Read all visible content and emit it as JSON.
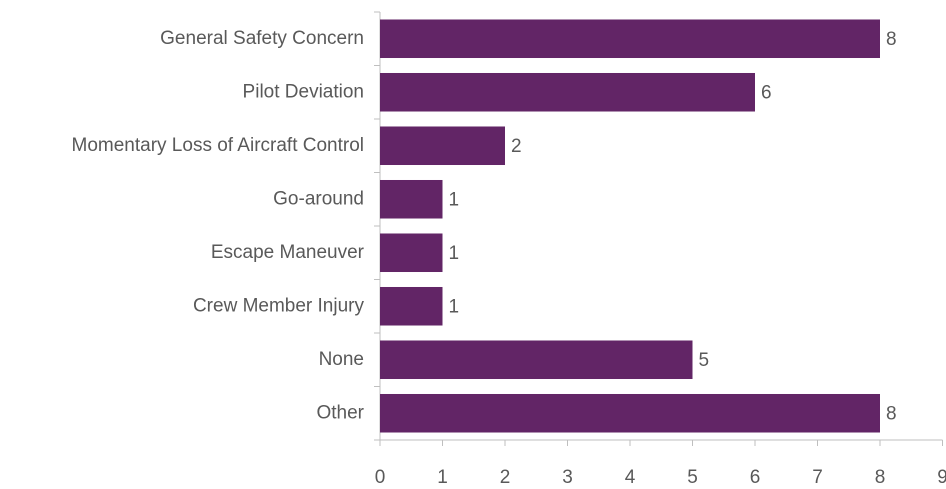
{
  "chart_data": {
    "type": "bar",
    "orientation": "horizontal",
    "categories": [
      "General Safety Concern",
      "Pilot Deviation",
      "Momentary Loss of Aircraft Control",
      "Go-around",
      "Escape Maneuver",
      "Crew Member Injury",
      "None",
      "Other"
    ],
    "values": [
      8,
      6,
      2,
      1,
      1,
      1,
      5,
      8
    ],
    "color": "#622566",
    "xlim": [
      0,
      9
    ],
    "xticks": [
      0,
      1,
      2,
      3,
      4,
      5,
      6,
      7,
      8,
      9
    ],
    "grid": false
  }
}
